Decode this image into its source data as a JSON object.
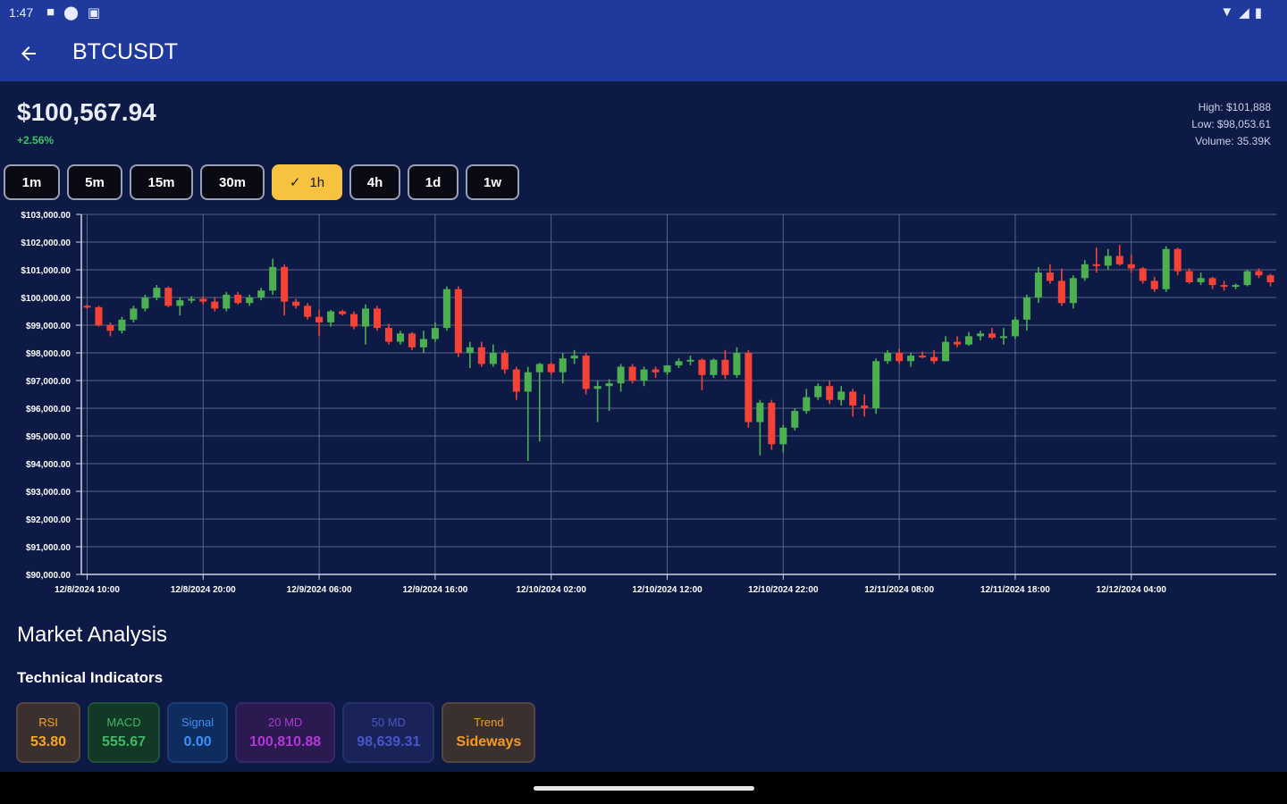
{
  "status_bar": {
    "time": "1:47",
    "left_icons": [
      "square-notification-icon",
      "location-icon",
      "app-notification-icon"
    ],
    "right_icons": [
      "wifi-icon",
      "signal-icon",
      "battery-icon"
    ]
  },
  "app_bar": {
    "title": "BTCUSDT",
    "back_icon": "arrow-left-icon"
  },
  "ticker": {
    "price": "$100,567.94",
    "change": "+2.56%",
    "high": "High: $101,888",
    "low": "Low: $98,053.61",
    "volume": "Volume: 35.39K"
  },
  "timeframes": [
    {
      "label": "1m",
      "selected": false
    },
    {
      "label": "5m",
      "selected": false
    },
    {
      "label": "15m",
      "selected": false
    },
    {
      "label": "30m",
      "selected": false
    },
    {
      "label": "1h",
      "selected": true
    },
    {
      "label": "4h",
      "selected": false
    },
    {
      "label": "1d",
      "selected": false
    },
    {
      "label": "1w",
      "selected": false
    }
  ],
  "chart_data": {
    "type": "candlestick",
    "y_tick_labels": [
      "$103,000.00",
      "$102,000.00",
      "$101,000.00",
      "$100,000.00",
      "$99,000.00",
      "$98,000.00",
      "$97,000.00",
      "$96,000.00",
      "$95,000.00",
      "$94,000.00",
      "$93,000.00",
      "$92,000.00",
      "$91,000.00",
      "$90,000.00"
    ],
    "y_ticks": [
      103000,
      102000,
      101000,
      100000,
      99000,
      98000,
      97000,
      96000,
      95000,
      94000,
      93000,
      92000,
      91000,
      90000
    ],
    "ylim": [
      90000,
      103000
    ],
    "x_tick_labels": [
      "12/8/2024 10:00",
      "12/8/2024 20:00",
      "12/9/2024 06:00",
      "12/9/2024 16:00",
      "12/10/2024 02:00",
      "12/10/2024 12:00",
      "12/10/2024 22:00",
      "12/11/2024 08:00",
      "12/11/2024 18:00",
      "12/12/2024 04:00"
    ],
    "x_tick_positions": [
      0.5,
      10.5,
      20.5,
      30.5,
      40.5,
      50.5,
      60.5,
      70.5,
      80.5,
      90.5
    ],
    "grid": true,
    "up_color": "#4caf50",
    "down_color": "#f44336",
    "candles": [
      [
        99700,
        99750,
        99600,
        99650
      ],
      [
        99650,
        99700,
        98950,
        99000
      ],
      [
        99000,
        99100,
        98600,
        98800
      ],
      [
        98800,
        99300,
        98700,
        99200
      ],
      [
        99200,
        99700,
        99100,
        99600
      ],
      [
        99600,
        100100,
        99500,
        100000
      ],
      [
        100000,
        100450,
        99900,
        100350
      ],
      [
        100350,
        100400,
        99650,
        99700
      ],
      [
        99700,
        100000,
        99350,
        99900
      ],
      [
        99900,
        100050,
        99800,
        99950
      ],
      [
        99950,
        100050,
        99750,
        99850
      ],
      [
        99850,
        100000,
        99500,
        99600
      ],
      [
        99600,
        100200,
        99500,
        100100
      ],
      [
        100100,
        100200,
        99750,
        99800
      ],
      [
        99800,
        100100,
        99700,
        100000
      ],
      [
        100000,
        100350,
        99900,
        100250
      ],
      [
        100250,
        101400,
        100100,
        101100
      ],
      [
        101100,
        101200,
        99350,
        99850
      ],
      [
        99850,
        99950,
        99600,
        99700
      ],
      [
        99700,
        99800,
        99200,
        99300
      ],
      [
        99300,
        99550,
        98600,
        99100
      ],
      [
        99100,
        99550,
        98950,
        99500
      ],
      [
        99500,
        99550,
        99350,
        99400
      ],
      [
        99400,
        99500,
        98850,
        98950
      ],
      [
        98950,
        99750,
        98300,
        99600
      ],
      [
        99600,
        99700,
        98800,
        98900
      ],
      [
        98900,
        99050,
        98300,
        98400
      ],
      [
        98400,
        98800,
        98300,
        98700
      ],
      [
        98700,
        98750,
        98100,
        98200
      ],
      [
        98200,
        98800,
        98000,
        98500
      ],
      [
        98500,
        99100,
        98400,
        98900
      ],
      [
        98900,
        100400,
        98800,
        100300
      ],
      [
        100300,
        100400,
        97850,
        98000
      ],
      [
        98000,
        98400,
        97450,
        98200
      ],
      [
        98200,
        98400,
        97500,
        97600
      ],
      [
        97600,
        98300,
        97500,
        98000
      ],
      [
        98000,
        98100,
        97250,
        97400
      ],
      [
        97400,
        97500,
        96300,
        96600
      ],
      [
        96600,
        97500,
        94100,
        97300
      ],
      [
        97300,
        97650,
        94800,
        97600
      ],
      [
        97600,
        97650,
        97200,
        97300
      ],
      [
        97300,
        98000,
        96900,
        97800
      ],
      [
        97800,
        98100,
        97600,
        97900
      ],
      [
        97900,
        98000,
        96500,
        96700
      ],
      [
        96700,
        97000,
        95500,
        96800
      ],
      [
        96800,
        97050,
        95900,
        96900
      ],
      [
        96900,
        97600,
        96600,
        97500
      ],
      [
        97500,
        97600,
        96900,
        97000
      ],
      [
        97000,
        97500,
        96800,
        97400
      ],
      [
        97400,
        97500,
        97100,
        97300
      ],
      [
        97300,
        97550,
        97200,
        97550
      ],
      [
        97550,
        97800,
        97450,
        97700
      ],
      [
        97700,
        97900,
        97550,
        97750
      ],
      [
        97750,
        97800,
        96650,
        97200
      ],
      [
        97200,
        97800,
        97100,
        97750
      ],
      [
        97750,
        98100,
        97050,
        97200
      ],
      [
        97200,
        98200,
        97100,
        98000
      ],
      [
        98000,
        98100,
        95300,
        95500
      ],
      [
        95500,
        96300,
        94300,
        96200
      ],
      [
        96200,
        96300,
        94500,
        94700
      ],
      [
        94700,
        95400,
        94400,
        95300
      ],
      [
        95300,
        96000,
        95200,
        95900
      ],
      [
        95900,
        96700,
        95800,
        96400
      ],
      [
        96400,
        96900,
        96300,
        96800
      ],
      [
        96800,
        97000,
        96150,
        96300
      ],
      [
        96300,
        96800,
        96100,
        96600
      ],
      [
        96600,
        96700,
        95700,
        96100
      ],
      [
        96100,
        96500,
        95700,
        96000
      ],
      [
        96000,
        97800,
        95800,
        97700
      ],
      [
        97700,
        98100,
        97600,
        98000
      ],
      [
        98000,
        98150,
        97600,
        97700
      ],
      [
        97700,
        98000,
        97500,
        97900
      ],
      [
        97900,
        98050,
        97800,
        97850
      ],
      [
        97850,
        98100,
        97600,
        97700
      ],
      [
        97700,
        98600,
        97700,
        98400
      ],
      [
        98400,
        98600,
        98200,
        98300
      ],
      [
        98300,
        98750,
        98250,
        98600
      ],
      [
        98600,
        98800,
        98450,
        98700
      ],
      [
        98700,
        98900,
        98500,
        98550
      ],
      [
        98550,
        98900,
        98300,
        98600
      ],
      [
        98600,
        99300,
        98500,
        99200
      ],
      [
        99200,
        100100,
        98800,
        100000
      ],
      [
        100000,
        101100,
        99800,
        100900
      ],
      [
        100900,
        101200,
        100500,
        100600
      ],
      [
        100600,
        101050,
        99700,
        99800
      ],
      [
        99800,
        100800,
        99600,
        100700
      ],
      [
        100700,
        101350,
        100600,
        101200
      ],
      [
        101200,
        101800,
        100900,
        101150
      ],
      [
        101150,
        101750,
        101000,
        101500
      ],
      [
        101500,
        101900,
        101150,
        101200
      ],
      [
        101200,
        101550,
        100900,
        101050
      ],
      [
        101050,
        101100,
        100500,
        100600
      ],
      [
        100600,
        100750,
        100200,
        100300
      ],
      [
        100300,
        101850,
        100200,
        101750
      ],
      [
        101750,
        101800,
        100800,
        100950
      ],
      [
        100950,
        101050,
        100500,
        100550
      ],
      [
        100550,
        100900,
        100450,
        100700
      ],
      [
        100700,
        100750,
        100300,
        100450
      ],
      [
        100450,
        100600,
        100250,
        100400
      ],
      [
        100400,
        100500,
        100300,
        100450
      ],
      [
        100450,
        101000,
        100400,
        100950
      ],
      [
        100950,
        101050,
        100700,
        100800
      ],
      [
        100800,
        100850,
        100400,
        100550
      ]
    ]
  },
  "market_analysis": {
    "title": "Market Analysis",
    "subtitle": "Technical Indicators",
    "indicators": [
      {
        "label": "RSI",
        "value": "53.80",
        "color": "#f5a623",
        "bg": "#3a3030",
        "border": "#564642"
      },
      {
        "label": "MACD",
        "value": "555.67",
        "color": "#43b566",
        "bg": "#123826",
        "border": "#1f5236"
      },
      {
        "label": "Signal",
        "value": "0.00",
        "color": "#3d8ff5",
        "bg": "#0f2c5e",
        "border": "#1b3d7a"
      },
      {
        "label": "20 MD",
        "value": "100,810.88",
        "color": "#b237d6",
        "bg": "#2a1a50",
        "border": "#3a2766"
      },
      {
        "label": "50 MD",
        "value": "98,639.31",
        "color": "#4a55c9",
        "bg": "#1a2358",
        "border": "#26306b"
      },
      {
        "label": "Trend",
        "value": "Sideways",
        "color": "#f59b23",
        "bg": "#3a3030",
        "border": "#564642"
      }
    ]
  }
}
